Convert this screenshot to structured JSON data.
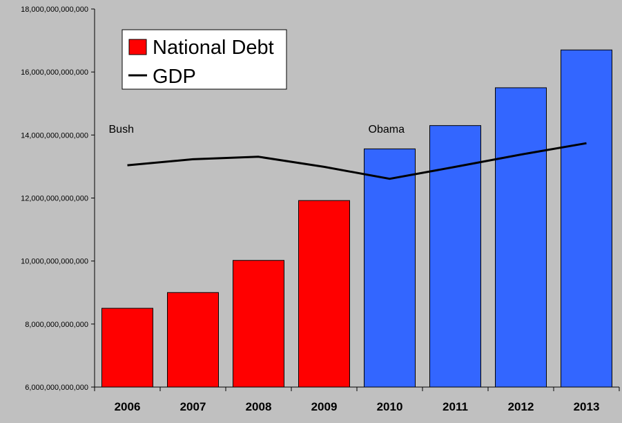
{
  "chart_data": {
    "type": "bar",
    "title": "",
    "xlabel": "",
    "ylabel": "",
    "categories": [
      "2006",
      "2007",
      "2008",
      "2009",
      "2010",
      "2011",
      "2012",
      "2013"
    ],
    "ylim": [
      6000000000000,
      18000000000000
    ],
    "yticks": [
      6000000000000,
      8000000000000,
      10000000000000,
      12000000000000,
      14000000000000,
      16000000000000,
      18000000000000
    ],
    "ytick_labels": [
      "6,000,000,000,000",
      "8,000,000,000,000",
      "10,000,000,000,000",
      "12,000,000,000,000",
      "14,000,000,000,000",
      "16,000,000,000,000",
      "18,000,000,000,000"
    ],
    "series": [
      {
        "name": "National Debt",
        "type": "bar",
        "values": [
          8500000000000,
          9000000000000,
          10020000000000,
          11920000000000,
          13560000000000,
          14300000000000,
          15500000000000,
          16700000000000
        ],
        "colors": [
          "#ff0000",
          "#ff0000",
          "#ff0000",
          "#ff0000",
          "#3366ff",
          "#3366ff",
          "#3366ff",
          "#3366ff"
        ]
      },
      {
        "name": "GDP",
        "type": "line",
        "values": [
          13040000000000,
          13230000000000,
          13310000000000,
          12990000000000,
          12610000000000,
          12990000000000,
          13380000000000,
          13740000000000
        ],
        "color": "#000000"
      }
    ],
    "annotations": [
      {
        "text": "Bush",
        "category": "2006",
        "y": 14200000000000
      },
      {
        "text": "Obama",
        "category": "2010",
        "y": 14200000000000
      }
    ],
    "legend": {
      "position": "top-left",
      "entries": [
        {
          "label": "National Debt",
          "swatch": "#ff0000"
        },
        {
          "label": "GDP",
          "swatch": "#000000"
        }
      ]
    },
    "grid": false,
    "background": "#c0c0c0"
  }
}
